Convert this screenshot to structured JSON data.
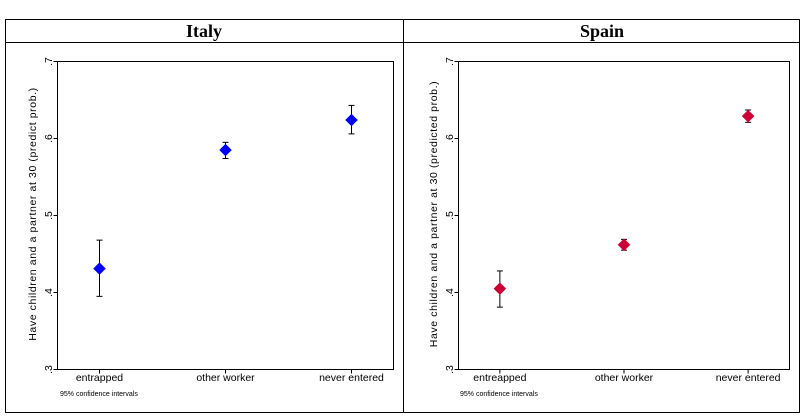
{
  "chart_data": [
    {
      "type": "scatter",
      "title": "Italy",
      "ylabel": "Have children and a partner at 30 (predict prob.)",
      "note": "95% confidence intervals",
      "categories": [
        "entrapped",
        "other worker",
        "never entered"
      ],
      "values": [
        0.431,
        0.585,
        0.624
      ],
      "ci_low": [
        0.395,
        0.574,
        0.606
      ],
      "ci_high": [
        0.468,
        0.595,
        0.643
      ],
      "ylim": [
        0.3,
        0.7
      ],
      "yticks": [
        0.3,
        0.4,
        0.5,
        0.6,
        0.7
      ],
      "ytick_labels": [
        ".3",
        ".4",
        ".5",
        ".6",
        ".7"
      ],
      "marker": "diamond",
      "color": "#0000ff",
      "grid": false,
      "series": [
        {
          "values": [
            0.431,
            0.585,
            0.624
          ]
        }
      ]
    },
    {
      "type": "scatter",
      "title": "Spain",
      "ylabel": "Have children and a partner at 30 (predicted prob.)",
      "note": "95% confidence intervals",
      "categories": [
        "entreapped",
        "other worker",
        "never entered"
      ],
      "values": [
        0.405,
        0.462,
        0.629
      ],
      "ci_low": [
        0.381,
        0.455,
        0.621
      ],
      "ci_high": [
        0.428,
        0.469,
        0.637
      ],
      "ylim": [
        0.3,
        0.7
      ],
      "yticks": [
        0.3,
        0.4,
        0.5,
        0.6,
        0.7
      ],
      "ytick_labels": [
        ".3",
        ".4",
        ".5",
        ".6",
        ".7"
      ],
      "marker": "diamond",
      "color": "#cc0033",
      "grid": false,
      "series": [
        {
          "values": [
            0.405,
            0.462,
            0.629
          ]
        }
      ]
    }
  ]
}
